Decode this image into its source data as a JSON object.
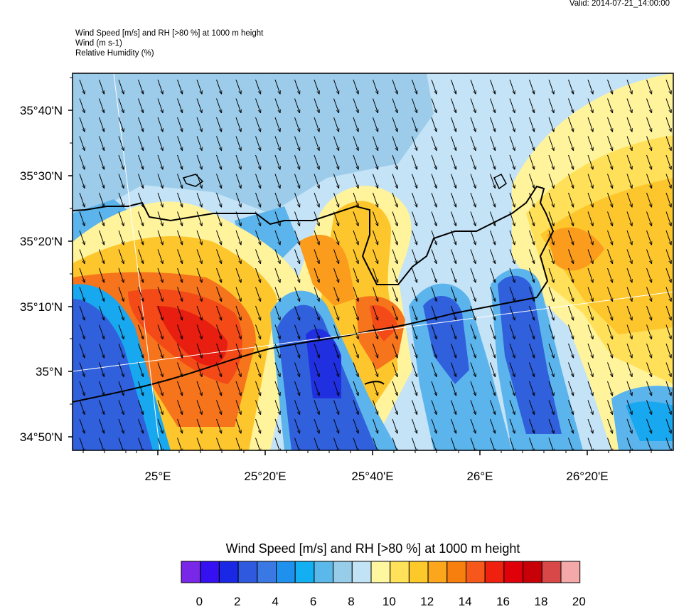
{
  "valid": "Valid: 2014-07-21_14:00:00",
  "header": {
    "line1": "Wind Speed [m/s] and RH [>80 %] at 1000 m height",
    "line2": "Wind   (m s-1)",
    "line3": "Relative Humidity   (%)"
  },
  "map": {
    "lat_labels": [
      "35°40'N",
      "35°30'N",
      "35°20'N",
      "35°10'N",
      "35°N",
      "34°50'N"
    ],
    "lon_labels": [
      "25°E",
      "25°20'E",
      "25°40'E",
      "26°E",
      "26°20'E"
    ],
    "wind_direction": "north-northwest"
  },
  "colorbar": {
    "title": "Wind Speed [m/s] and RH [>80 %] at 1000 m height",
    "labels": [
      "0",
      "2",
      "4",
      "6",
      "8",
      "10",
      "12",
      "14",
      "16",
      "18",
      "20"
    ],
    "colors": [
      "#7a28e8",
      "#3510f0",
      "#1a28e6",
      "#2f5ae0",
      "#3a78e4",
      "#1e90ee",
      "#12b0f2",
      "#5ab8ea",
      "#98cde9",
      "#c2e3f5",
      "#fff7a0",
      "#ffe25a",
      "#fdc82a",
      "#fca61c",
      "#f77f0e",
      "#f5581a",
      "#f0200e",
      "#e0000a",
      "#c80008",
      "#d84848",
      "#f5a8a8"
    ]
  },
  "field_colors": {
    "background": "#c4e3f6",
    "medium_blue": "#9dcceb",
    "mid_blue": "#5cb4ec",
    "dark_blue": "#3060dc",
    "deep_blue": "#2030e0",
    "cyan": "#18a8f0",
    "yellow_pale": "#fff39c",
    "yellow": "#ffe058",
    "gold": "#fdc62c",
    "orange": "#fb9c1c",
    "dark_orange": "#f6741c",
    "red_orange": "#f34a18",
    "red": "#e81e10"
  }
}
